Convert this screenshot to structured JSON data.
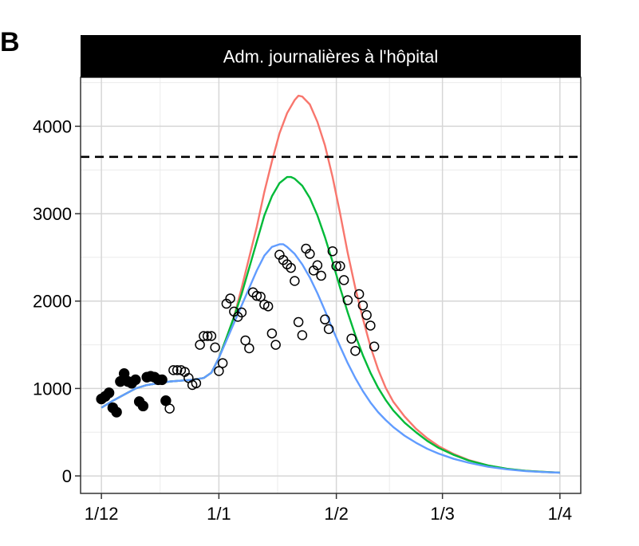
{
  "panel_tag": "B",
  "chart_data": {
    "type": "line",
    "title": "Adm. journalières à l'hôpital",
    "xlabel": "",
    "ylabel": "",
    "x_ticks": [
      "1/12",
      "1/1",
      "1/2",
      "1/3",
      "1/4"
    ],
    "x_tick_days": [
      0,
      31,
      62,
      90,
      121
    ],
    "y_ticks": [
      "0",
      "1000",
      "2000",
      "3000",
      "4000"
    ],
    "y_tick_values": [
      0,
      1000,
      2000,
      3000,
      4000
    ],
    "xlim": [
      -5.5,
      126.5
    ],
    "ylim": [
      -200,
      4560
    ],
    "grid": true,
    "hline": {
      "value": 3650,
      "style": "dashed",
      "color": "#000000"
    },
    "series": [
      {
        "color": "#F8766D",
        "points": [
          [
            0,
            780
          ],
          [
            3,
            860
          ],
          [
            6,
            930
          ],
          [
            9,
            1000
          ],
          [
            12,
            1040
          ],
          [
            15,
            1060
          ],
          [
            18,
            1080
          ],
          [
            21,
            1090
          ],
          [
            24,
            1100
          ],
          [
            27,
            1120
          ],
          [
            29,
            1180
          ],
          [
            31,
            1350
          ],
          [
            33,
            1580
          ],
          [
            35,
            1820
          ],
          [
            37,
            2150
          ],
          [
            39,
            2500
          ],
          [
            41,
            2850
          ],
          [
            43,
            3250
          ],
          [
            45,
            3600
          ],
          [
            47,
            3920
          ],
          [
            49,
            4150
          ],
          [
            51,
            4300
          ],
          [
            52,
            4350
          ],
          [
            53,
            4340
          ],
          [
            55,
            4250
          ],
          [
            57,
            4050
          ],
          [
            59,
            3780
          ],
          [
            61,
            3420
          ],
          [
            63,
            3000
          ],
          [
            65,
            2550
          ],
          [
            67,
            2150
          ],
          [
            69,
            1800
          ],
          [
            71,
            1480
          ],
          [
            73,
            1220
          ],
          [
            75,
            1010
          ],
          [
            77,
            850
          ],
          [
            80,
            680
          ],
          [
            83,
            540
          ],
          [
            86,
            430
          ],
          [
            89,
            340
          ],
          [
            93,
            250
          ],
          [
            97,
            180
          ],
          [
            102,
            120
          ],
          [
            107,
            80
          ],
          [
            112,
            58
          ],
          [
            117,
            45
          ],
          [
            121,
            38
          ]
        ]
      },
      {
        "color": "#00BA38",
        "points": [
          [
            0,
            780
          ],
          [
            3,
            860
          ],
          [
            6,
            930
          ],
          [
            9,
            1000
          ],
          [
            12,
            1040
          ],
          [
            15,
            1060
          ],
          [
            18,
            1080
          ],
          [
            21,
            1090
          ],
          [
            24,
            1100
          ],
          [
            27,
            1120
          ],
          [
            29,
            1180
          ],
          [
            31,
            1350
          ],
          [
            33,
            1580
          ],
          [
            35,
            1820
          ],
          [
            37,
            2080
          ],
          [
            39,
            2380
          ],
          [
            41,
            2680
          ],
          [
            43,
            2980
          ],
          [
            45,
            3200
          ],
          [
            47,
            3350
          ],
          [
            49,
            3420
          ],
          [
            50,
            3420
          ],
          [
            51,
            3400
          ],
          [
            53,
            3320
          ],
          [
            55,
            3180
          ],
          [
            57,
            2980
          ],
          [
            59,
            2730
          ],
          [
            61,
            2450
          ],
          [
            63,
            2150
          ],
          [
            65,
            1870
          ],
          [
            67,
            1610
          ],
          [
            69,
            1380
          ],
          [
            71,
            1180
          ],
          [
            73,
            1010
          ],
          [
            75,
            870
          ],
          [
            77,
            750
          ],
          [
            80,
            610
          ],
          [
            83,
            500
          ],
          [
            86,
            400
          ],
          [
            89,
            320
          ],
          [
            93,
            240
          ],
          [
            97,
            175
          ],
          [
            102,
            120
          ],
          [
            107,
            82
          ],
          [
            112,
            58
          ],
          [
            117,
            45
          ],
          [
            121,
            38
          ]
        ]
      },
      {
        "color": "#619CFF",
        "points": [
          [
            0,
            780
          ],
          [
            3,
            860
          ],
          [
            6,
            930
          ],
          [
            9,
            1000
          ],
          [
            12,
            1040
          ],
          [
            15,
            1060
          ],
          [
            18,
            1080
          ],
          [
            21,
            1090
          ],
          [
            24,
            1100
          ],
          [
            27,
            1120
          ],
          [
            29,
            1180
          ],
          [
            31,
            1350
          ],
          [
            33,
            1550
          ],
          [
            35,
            1750
          ],
          [
            37,
            1950
          ],
          [
            39,
            2150
          ],
          [
            41,
            2350
          ],
          [
            43,
            2520
          ],
          [
            45,
            2620
          ],
          [
            47,
            2650
          ],
          [
            48,
            2650
          ],
          [
            49,
            2620
          ],
          [
            51,
            2540
          ],
          [
            53,
            2420
          ],
          [
            55,
            2270
          ],
          [
            57,
            2090
          ],
          [
            59,
            1890
          ],
          [
            61,
            1680
          ],
          [
            63,
            1480
          ],
          [
            65,
            1290
          ],
          [
            67,
            1120
          ],
          [
            69,
            970
          ],
          [
            71,
            840
          ],
          [
            73,
            730
          ],
          [
            75,
            640
          ],
          [
            77,
            560
          ],
          [
            80,
            460
          ],
          [
            83,
            380
          ],
          [
            86,
            310
          ],
          [
            89,
            255
          ],
          [
            93,
            195
          ],
          [
            97,
            150
          ],
          [
            102,
            105
          ],
          [
            107,
            75
          ],
          [
            112,
            55
          ],
          [
            117,
            43
          ],
          [
            121,
            37
          ]
        ]
      }
    ],
    "points_filled": [
      [
        0,
        880
      ],
      [
        1,
        910
      ],
      [
        2,
        950
      ],
      [
        3,
        780
      ],
      [
        4,
        730
      ],
      [
        5,
        1080
      ],
      [
        6,
        1170
      ],
      [
        7,
        1080
      ],
      [
        8,
        1060
      ],
      [
        9,
        1100
      ],
      [
        10,
        850
      ],
      [
        11,
        800
      ],
      [
        12,
        1130
      ],
      [
        13,
        1140
      ],
      [
        14,
        1130
      ],
      [
        15,
        1100
      ],
      [
        16,
        1100
      ],
      [
        17,
        860
      ]
    ],
    "points_open": [
      [
        18,
        770
      ],
      [
        19,
        1210
      ],
      [
        20,
        1210
      ],
      [
        21,
        1210
      ],
      [
        22,
        1190
      ],
      [
        23,
        1120
      ],
      [
        24,
        1040
      ],
      [
        25,
        1060
      ],
      [
        26,
        1500
      ],
      [
        27,
        1600
      ],
      [
        28,
        1600
      ],
      [
        29,
        1600
      ],
      [
        30,
        1470
      ],
      [
        31,
        1200
      ],
      [
        32,
        1290
      ],
      [
        33,
        1970
      ],
      [
        34,
        2030
      ],
      [
        35,
        1880
      ],
      [
        36,
        1820
      ],
      [
        37,
        1870
      ],
      [
        38,
        1550
      ],
      [
        39,
        1460
      ],
      [
        40,
        2100
      ],
      [
        41,
        2060
      ],
      [
        42,
        2050
      ],
      [
        43,
        1960
      ],
      [
        44,
        1940
      ],
      [
        45,
        1630
      ],
      [
        46,
        1500
      ],
      [
        47,
        2530
      ],
      [
        48,
        2470
      ],
      [
        49,
        2420
      ],
      [
        50,
        2380
      ],
      [
        51,
        2230
      ],
      [
        52,
        1760
      ],
      [
        53,
        1610
      ],
      [
        54,
        2600
      ],
      [
        55,
        2540
      ],
      [
        56,
        2350
      ],
      [
        57,
        2410
      ],
      [
        58,
        2290
      ],
      [
        59,
        1790
      ],
      [
        60,
        1680
      ],
      [
        61,
        2570
      ],
      [
        62,
        2400
      ],
      [
        63,
        2400
      ],
      [
        64,
        2240
      ],
      [
        65,
        2010
      ],
      [
        66,
        1570
      ],
      [
        67,
        1430
      ],
      [
        68,
        2080
      ],
      [
        69,
        1950
      ],
      [
        70,
        1840
      ],
      [
        71,
        1720
      ],
      [
        72,
        1480
      ]
    ]
  }
}
